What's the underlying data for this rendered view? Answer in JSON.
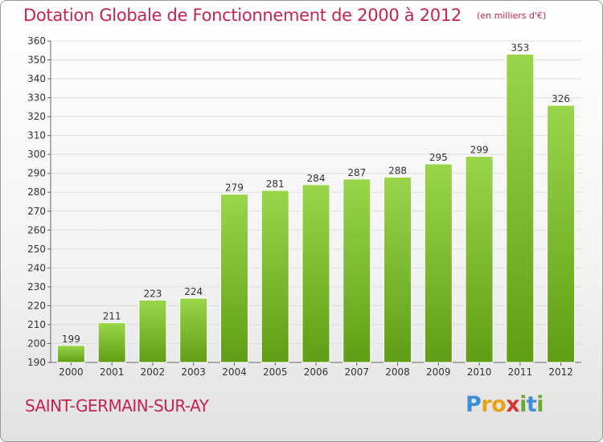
{
  "title": "Dotation Globale de Fonctionnement de 2000 à 2012",
  "subtitle": "(en milliers d'€)",
  "commune": "SAINT-GERMAIN-SUR-AY",
  "logo": {
    "text": "Proxiti",
    "letters": [
      {
        "ch": "P",
        "color": "#3b8fd4"
      },
      {
        "ch": "r",
        "color": "#e8a21a"
      },
      {
        "ch": "o",
        "color": "#e8a21a"
      },
      {
        "ch": "x",
        "color": "#d8342f"
      },
      {
        "ch": "i",
        "color": "#6aaa2a"
      },
      {
        "ch": "t",
        "color": "#3b8fd4"
      },
      {
        "ch": "i",
        "color": "#6aaa2a"
      }
    ]
  },
  "colors": {
    "title": "#c8234d",
    "bar_top": "#9ad64a",
    "bar_bottom": "#5f9e14",
    "grid": "#dddddd",
    "axis": "#666666"
  },
  "chart_data": {
    "type": "bar",
    "categories": [
      "2000",
      "2001",
      "2002",
      "2003",
      "2004",
      "2005",
      "2006",
      "2007",
      "2008",
      "2009",
      "2010",
      "2011",
      "2012"
    ],
    "values": [
      199,
      211,
      223,
      224,
      279,
      281,
      284,
      287,
      288,
      295,
      299,
      353,
      326
    ],
    "title": "Dotation Globale de Fonctionnement de 2000 à 2012",
    "ylim": [
      190,
      360
    ],
    "ytick_step": 10,
    "grid": true,
    "data_labels": true
  }
}
